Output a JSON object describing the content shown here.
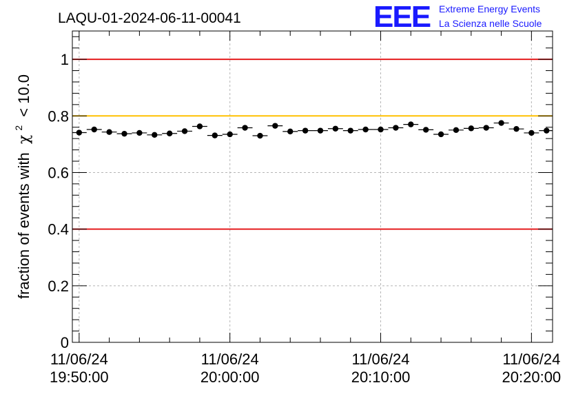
{
  "chart_data": {
    "type": "scatter",
    "title": "LAQU-01-2024-06-11-00041",
    "ylabel_prefix": "fraction of events with",
    "ylabel_symbol": "χ",
    "ylabel_exponent": "2",
    "ylabel_suffix": "< 10.0",
    "xlabel": "",
    "ylim": [
      0,
      1.1
    ],
    "x_unit": "minutes since 19:50:00",
    "xlim": [
      -0.45,
      31.4
    ],
    "yticks": [
      {
        "value": 0,
        "label": "0"
      },
      {
        "value": 0.2,
        "label": "0.2"
      },
      {
        "value": 0.4,
        "label": "0.4"
      },
      {
        "value": 0.6,
        "label": "0.6"
      },
      {
        "value": 0.8,
        "label": "0.8"
      },
      {
        "value": 1,
        "label": "1"
      }
    ],
    "xticks": [
      {
        "value": 0,
        "date": "11/06/24",
        "time": "19:50:00"
      },
      {
        "value": 10,
        "date": "11/06/24",
        "time": "20:00:00"
      },
      {
        "value": 20,
        "date": "11/06/24",
        "time": "20:10:00"
      },
      {
        "value": 30,
        "date": "11/06/24",
        "time": "20:20:00"
      }
    ],
    "reference_lines": [
      {
        "value": 1.0,
        "color": "#e41a1c"
      },
      {
        "value": 0.8,
        "color": "#ffc000"
      },
      {
        "value": 0.4,
        "color": "#e41a1c"
      }
    ],
    "bin_width": 1,
    "x": [
      0,
      1,
      2,
      3,
      4,
      5,
      6,
      7,
      8,
      9,
      10,
      11,
      12,
      13,
      14,
      15,
      16,
      17,
      18,
      19,
      20,
      21,
      22,
      23,
      24,
      25,
      26,
      27,
      28,
      29,
      30,
      31
    ],
    "values": [
      0.741,
      0.752,
      0.743,
      0.737,
      0.74,
      0.733,
      0.738,
      0.746,
      0.763,
      0.731,
      0.735,
      0.758,
      0.73,
      0.765,
      0.745,
      0.748,
      0.748,
      0.755,
      0.748,
      0.752,
      0.752,
      0.758,
      0.77,
      0.751,
      0.735,
      0.75,
      0.756,
      0.758,
      0.775,
      0.754,
      0.74,
      0.748
    ]
  },
  "logo": {
    "text": "EEE",
    "line1": "Extreme Energy Events",
    "line2": "La Scienza nelle Scuole",
    "color": "#1a1aff"
  },
  "colors": {
    "grid": "#b4b4b4",
    "axis": "#000000",
    "marker": "#000000"
  }
}
